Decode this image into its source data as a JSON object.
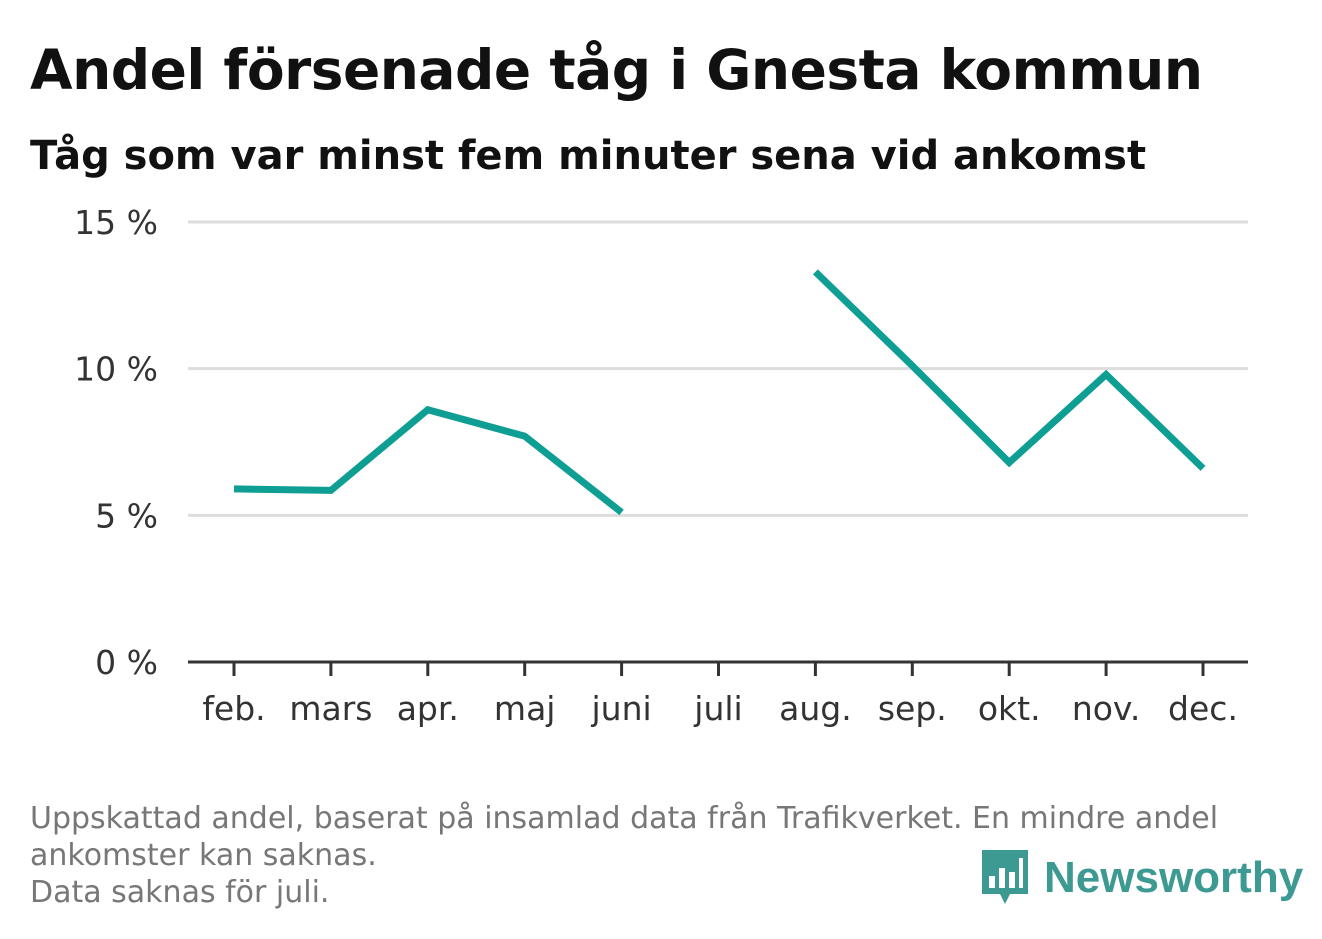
{
  "title": "Andel försenade tåg i Gnesta kommun",
  "subtitle": "Tåg som var minst fem minuter sena vid ankomst",
  "footnote": {
    "lines": [
      "Uppskattad andel, baserat på insamlad data från Trafikverket. En mindre andel",
      "ankomster kan saknas.",
      "Data saknas för juli."
    ]
  },
  "logo": {
    "text": "Newsworthy",
    "icon": "bar-chart-speech-bubble-icon"
  },
  "colors": {
    "line": "#0e9e93",
    "grid": "#dddddd",
    "axis": "#333333",
    "text": "#333333",
    "brand": "#3d9a92"
  },
  "chart_data": {
    "type": "line",
    "categories": [
      "feb.",
      "mars",
      "apr.",
      "maj",
      "juni",
      "juli",
      "aug.",
      "sep.",
      "okt.",
      "nov.",
      "dec."
    ],
    "series": [
      {
        "values": [
          5.9,
          5.85,
          8.6,
          7.7,
          5.1,
          null,
          13.3,
          10.1,
          6.8,
          9.8,
          6.6
        ]
      }
    ],
    "y_ticks": [
      0,
      5,
      10,
      15
    ],
    "y_tick_labels": [
      "0 %",
      "5 %",
      "10 %",
      "15 %"
    ],
    "ylim": [
      0,
      15
    ],
    "grid": true,
    "legend": "none"
  }
}
